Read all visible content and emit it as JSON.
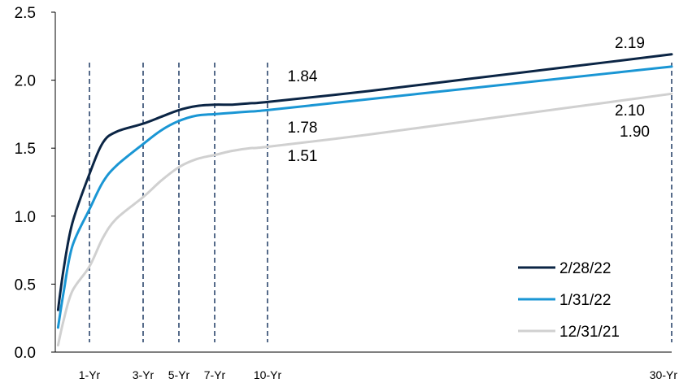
{
  "chart_data": {
    "type": "line",
    "title": "",
    "xlabel": "",
    "ylabel": "",
    "ylim": [
      0,
      2.5
    ],
    "yticks": [
      "0.0",
      "0.5",
      "1.0",
      "1.5",
      "2.0",
      "2.5"
    ],
    "x_markers": [
      {
        "label": "1-Yr",
        "x": 1
      },
      {
        "label": "3-Yr",
        "x": 3
      },
      {
        "label": "5-Yr",
        "x": 5
      },
      {
        "label": "7-Yr",
        "x": 7
      },
      {
        "label": "10-Yr",
        "x": 10
      },
      {
        "label": "30-Yr",
        "x": 30
      }
    ],
    "grid": false,
    "legend_position": "bottom-right",
    "series": [
      {
        "name": "2/28/22",
        "color": "#0b2545",
        "points": [
          [
            0.08,
            0.31
          ],
          [
            0.25,
            0.62
          ],
          [
            0.5,
            0.95
          ],
          [
            1,
            1.31
          ],
          [
            1.5,
            1.54
          ],
          [
            2,
            1.62
          ],
          [
            3,
            1.68
          ],
          [
            4,
            1.73
          ],
          [
            5,
            1.78
          ],
          [
            6,
            1.81
          ],
          [
            7,
            1.82
          ],
          [
            8,
            1.82
          ],
          [
            9,
            1.83
          ],
          [
            10,
            1.84
          ],
          [
            15,
            1.92
          ],
          [
            20,
            2.01
          ],
          [
            25,
            2.1
          ],
          [
            30,
            2.19
          ]
        ]
      },
      {
        "name": "1/31/22",
        "color": "#1a96d4",
        "points": [
          [
            0.08,
            0.18
          ],
          [
            0.25,
            0.45
          ],
          [
            0.5,
            0.78
          ],
          [
            1,
            1.05
          ],
          [
            1.5,
            1.25
          ],
          [
            2,
            1.37
          ],
          [
            3,
            1.53
          ],
          [
            4,
            1.63
          ],
          [
            5,
            1.7
          ],
          [
            6,
            1.74
          ],
          [
            7,
            1.75
          ],
          [
            8,
            1.76
          ],
          [
            9,
            1.77
          ],
          [
            10,
            1.78
          ],
          [
            15,
            1.86
          ],
          [
            20,
            1.94
          ],
          [
            25,
            2.02
          ],
          [
            30,
            2.1
          ]
        ]
      },
      {
        "name": "12/31/21",
        "color": "#d0d0d0",
        "points": [
          [
            0.08,
            0.05
          ],
          [
            0.25,
            0.24
          ],
          [
            0.5,
            0.45
          ],
          [
            1,
            0.63
          ],
          [
            1.5,
            0.84
          ],
          [
            2,
            0.98
          ],
          [
            3,
            1.14
          ],
          [
            4,
            1.26
          ],
          [
            5,
            1.36
          ],
          [
            6,
            1.42
          ],
          [
            7,
            1.45
          ],
          [
            8,
            1.48
          ],
          [
            9,
            1.5
          ],
          [
            10,
            1.51
          ],
          [
            15,
            1.6
          ],
          [
            20,
            1.7
          ],
          [
            25,
            1.8
          ],
          [
            30,
            1.9
          ]
        ]
      }
    ],
    "data_labels": [
      {
        "text": "1.84",
        "series": "2/28/22",
        "x": 10
      },
      {
        "text": "1.78",
        "series": "1/31/22",
        "x": 10
      },
      {
        "text": "1.51",
        "series": "12/31/21",
        "x": 10
      },
      {
        "text": "2.19",
        "series": "2/28/22",
        "x": 30
      },
      {
        "text": "2.10",
        "series": "1/31/22",
        "x": 30
      },
      {
        "text": "1.90",
        "series": "12/31/21",
        "x": 30
      }
    ]
  }
}
